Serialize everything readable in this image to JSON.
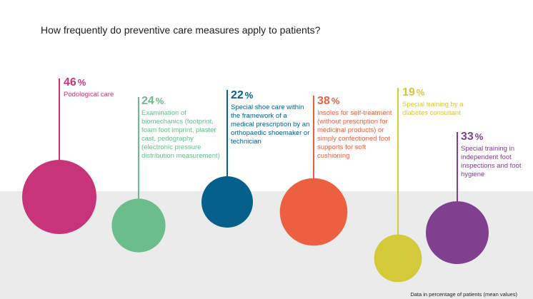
{
  "title": "How frequently do preventive care measures apply to patients?",
  "footnote": "Data in percentage of patients (mean values)",
  "chart_data": {
    "type": "bubble",
    "title": "How frequently do preventive care measures apply to patients?",
    "unit": "%",
    "items": [
      {
        "value": 46,
        "label": "Podological care",
        "color": "#c8347a"
      },
      {
        "value": 24,
        "label": "Examination of biomechanics (footprint, foam foot imprint, plaster cast, pedography (electronic pressure distribution measurement)",
        "color": "#6bbd8b"
      },
      {
        "value": 22,
        "label": "Special shoe care within the framework of a medical prescription by an orthopaedic shoemaker or technician",
        "color": "#05608b"
      },
      {
        "value": 38,
        "label": "Insoles for self-treatment (without prescription for medicinal products) or simply confectioned foot supports for soft cushioning",
        "color": "#ec6041"
      },
      {
        "value": 19,
        "label": "Special training by a diabetes consultant",
        "color": "#d4c93a"
      },
      {
        "value": 33,
        "label": "Special training in independent foot inspections and foot hygiene",
        "color": "#80408f"
      }
    ]
  }
}
